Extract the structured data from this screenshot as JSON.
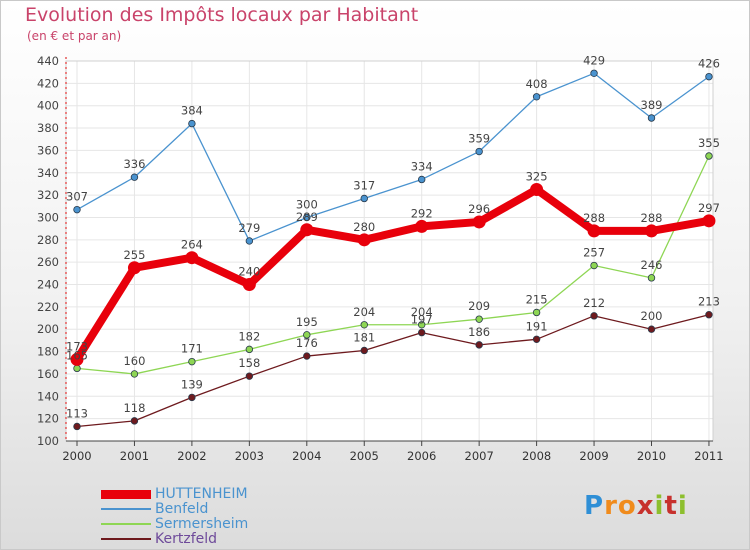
{
  "chart_data": {
    "type": "line",
    "title": "Evolution des Impôts locaux par Habitant",
    "subtitle": "(en € et par an)",
    "xlabel": "",
    "ylabel": "",
    "categories": [
      "2000",
      "2001",
      "2002",
      "2003",
      "2004",
      "2005",
      "2006",
      "2007",
      "2008",
      "2009",
      "2010",
      "2011"
    ],
    "ylim": [
      100,
      440
    ],
    "yticks": [
      100,
      120,
      140,
      160,
      180,
      200,
      220,
      240,
      260,
      280,
      300,
      320,
      340,
      360,
      380,
      400,
      420,
      440
    ],
    "legend_position": "bottom-left",
    "series": [
      {
        "name": "HUTTENHEIM",
        "color": "#e8000b",
        "values": [
          173,
          255,
          264,
          240,
          289,
          280,
          292,
          296,
          325,
          288,
          288,
          297
        ]
      },
      {
        "name": "Benfeld",
        "color": "#4a93cf",
        "values": [
          307,
          336,
          384,
          279,
          300,
          317,
          334,
          359,
          408,
          429,
          389,
          426
        ]
      },
      {
        "name": "Sermersheim",
        "color": "#8ed654",
        "values": [
          165,
          160,
          171,
          182,
          195,
          204,
          204,
          209,
          215,
          257,
          246,
          355
        ]
      },
      {
        "name": "Kertzfeld",
        "color": "#6e1a1e",
        "values": [
          113,
          118,
          139,
          158,
          176,
          181,
          197,
          186,
          191,
          212,
          200,
          213
        ]
      }
    ]
  },
  "branding": {
    "letters": [
      "P",
      "r",
      "o",
      "x",
      "i",
      "t",
      "i"
    ],
    "colors": [
      "#2f8fd6",
      "#f08b1c",
      "#f08b1c",
      "#c7312d",
      "#8dbf2e",
      "#c7312d",
      "#8dbf2e"
    ]
  }
}
